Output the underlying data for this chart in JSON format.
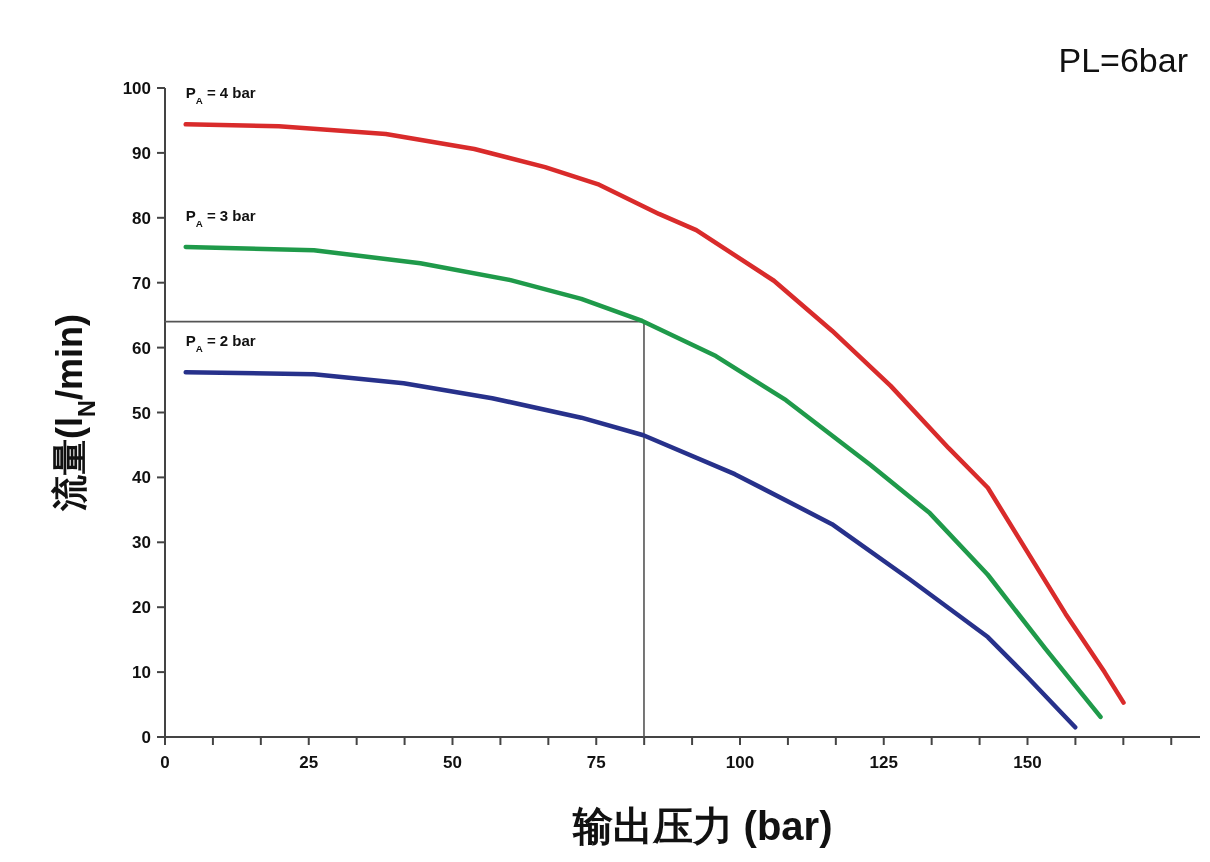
{
  "chart_data": {
    "type": "line",
    "title": "PL=6bar",
    "xlabel": "输出压力 (bar)",
    "ylabel": "流量(l$_{N}$/min)",
    "xlim": [
      0,
      180
    ],
    "ylim": [
      0,
      100
    ],
    "xticks": [
      0,
      {
        "value": 8.333,
        "label": null
      },
      {
        "value": 16.667,
        "label": null
      },
      25,
      {
        "value": 33.333,
        "label": null
      },
      {
        "value": 41.667,
        "label": null
      },
      50,
      {
        "value": 58.333,
        "label": null
      },
      {
        "value": 66.667,
        "label": null
      },
      75,
      {
        "value": 83.333,
        "label": null
      },
      {
        "value": 91.667,
        "label": null
      },
      100,
      {
        "value": 108.333,
        "label": null
      },
      {
        "value": 116.667,
        "label": null
      },
      125,
      {
        "value": 133.333,
        "label": null
      },
      {
        "value": 141.667,
        "label": null
      },
      150,
      {
        "value": 158.333,
        "label": null
      },
      {
        "value": 166.667,
        "label": null
      },
      {
        "value": 175,
        "label": null
      }
    ],
    "yticks": [
      0,
      10,
      20,
      30,
      40,
      50,
      60,
      70,
      80,
      90,
      100
    ],
    "series": [
      {
        "name": "P$_{A}$ = 4 bar",
        "color": "#d92b2b",
        "x": [
          3.6,
          19.8,
          38.4,
          53.8,
          66.1,
          75.5,
          85.9,
          92.4,
          105.9,
          116,
          126.2,
          136.3,
          143.1,
          156.6,
          163.4,
          166.7
        ],
        "values": [
          94.4,
          94.1,
          92.9,
          90.6,
          87.8,
          85.1,
          80.6,
          78.1,
          70.3,
          62.6,
          54.1,
          44.5,
          38.4,
          19.0,
          10.0,
          5.3
        ]
      },
      {
        "name": "P$_{A}$ = 3 bar",
        "color": "#1f9a4a",
        "x": [
          3.6,
          25.9,
          44.4,
          60.1,
          72.4,
          83.0,
          95.8,
          108,
          122.7,
          133,
          143.1,
          153.1,
          162.7
        ],
        "values": [
          75.5,
          75.0,
          73.0,
          70.4,
          67.5,
          64.1,
          58.7,
          51.9,
          41.9,
          34.5,
          25.0,
          13.6,
          3.1
        ]
      },
      {
        "name": "P$_{A}$ = 2 bar",
        "color": "#27318b",
        "x": [
          3.6,
          25.9,
          41.5,
          56.9,
          72.4,
          83.2,
          99.1,
          116,
          129.5,
          143.1,
          149.8,
          158.3
        ],
        "values": [
          56.2,
          55.9,
          54.5,
          52.2,
          49.2,
          46.5,
          40.5,
          32.8,
          24.3,
          15.4,
          9.4,
          1.5
        ]
      },
      {
        "type": "line",
        "color": "#555555",
        "x": [
          0,
          83.3,
          83.3
        ],
        "values": [
          64,
          64,
          0
        ]
      }
    ]
  }
}
